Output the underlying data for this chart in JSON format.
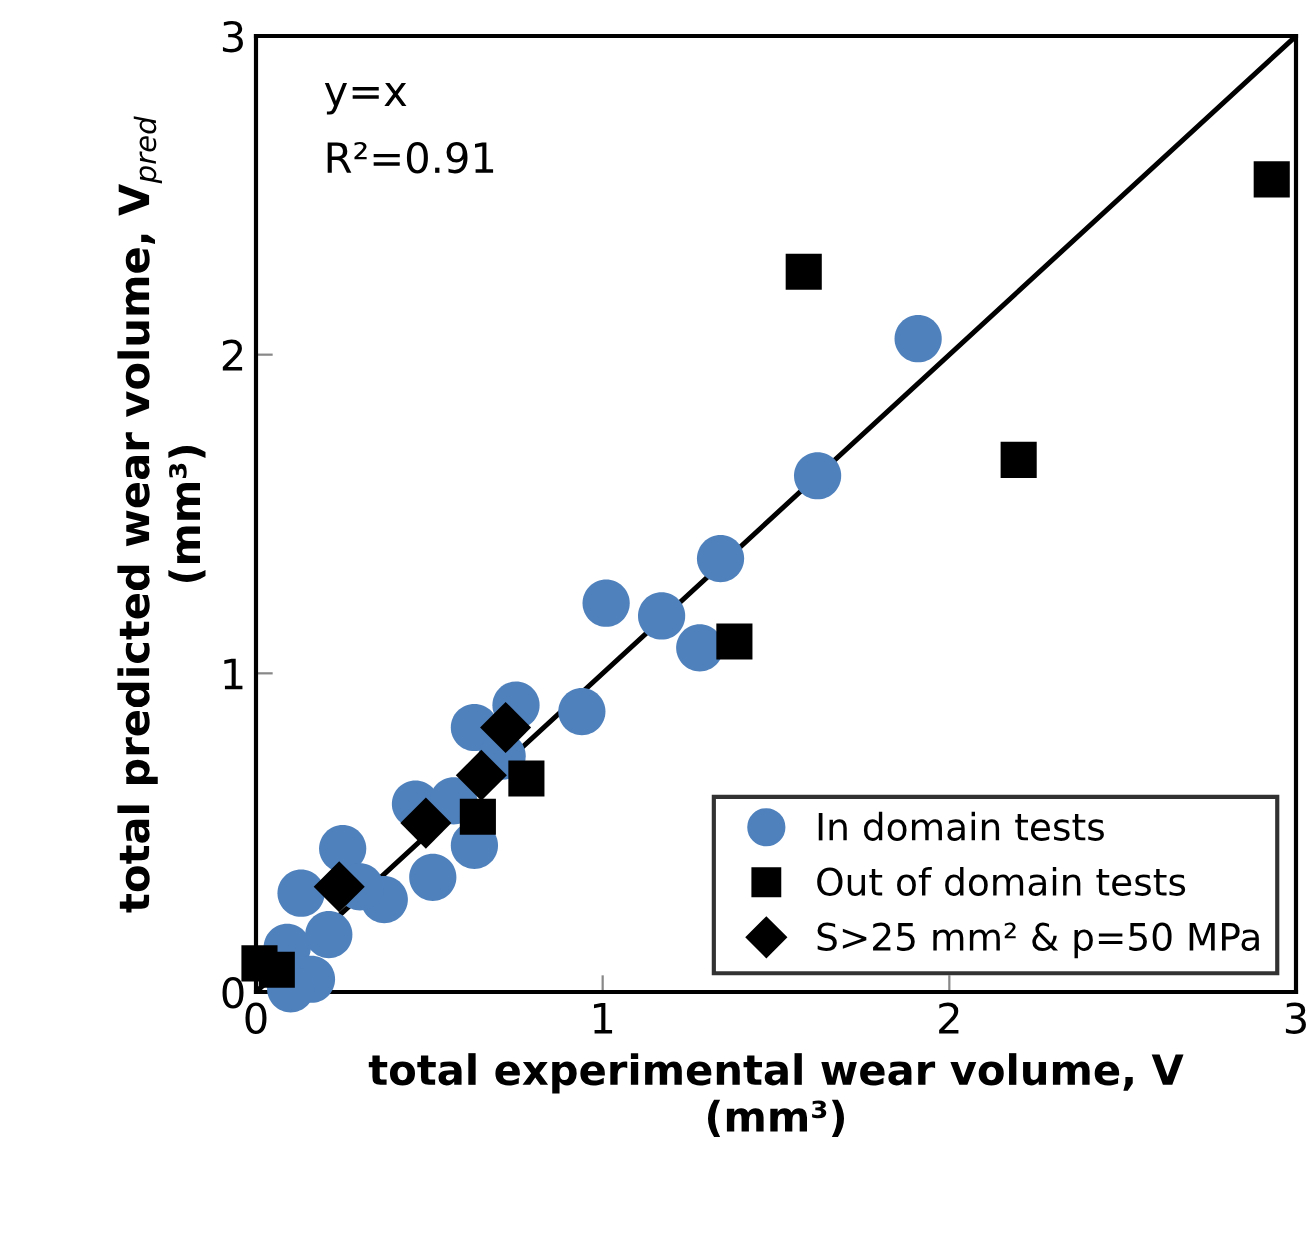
{
  "chart_data": {
    "type": "scatter",
    "xlabel": "total experimental wear volume, V\n(mm³)",
    "ylabel": "total predicted wear volume, V$_{pred}$\n(mm³)",
    "xlim": [
      0,
      3
    ],
    "ylim": [
      0,
      3
    ],
    "xticks": [
      0,
      1,
      2,
      3
    ],
    "yticks": [
      0,
      1,
      2,
      3
    ],
    "grid": false,
    "legend": "bottom right",
    "annotations": [
      "y=x",
      "R²=0.91"
    ],
    "series": [
      {
        "name": "In domain tests",
        "color": "#4f81bd",
        "marker": "circle",
        "x": [
          1.91,
          1.62,
          1.34,
          1.17,
          1.01,
          1.28,
          0.94,
          0.75,
          0.63,
          0.71,
          0.46,
          0.57,
          0.63,
          0.51,
          0.25,
          0.13,
          0.37,
          0.21,
          0.09,
          0.16,
          0.1,
          0.3
        ],
        "values": [
          2.05,
          1.62,
          1.36,
          1.18,
          1.22,
          1.08,
          0.88,
          0.9,
          0.83,
          0.74,
          0.59,
          0.6,
          0.46,
          0.36,
          0.45,
          0.31,
          0.29,
          0.18,
          0.14,
          0.04,
          0.01,
          0.33
        ]
      },
      {
        "name": "Out of domain tests",
        "color": "#000000",
        "marker": "square",
        "x": [
          1.58,
          2.2,
          2.93,
          1.38,
          0.78,
          0.64,
          0.01,
          0.06
        ],
        "values": [
          2.26,
          1.67,
          2.55,
          1.1,
          0.67,
          0.55,
          0.09,
          0.07
        ]
      },
      {
        "name": "S>25 mm² & p=50 MPa",
        "color": "#000000",
        "marker": "diamond",
        "x": [
          0.72,
          0.65,
          0.49,
          0.24
        ],
        "values": [
          0.83,
          0.68,
          0.53,
          0.33
        ]
      },
      {
        "type": "line",
        "color": "#000000",
        "marker": "none",
        "x": [
          0,
          3
        ],
        "values": [
          0,
          3
        ]
      }
    ]
  }
}
